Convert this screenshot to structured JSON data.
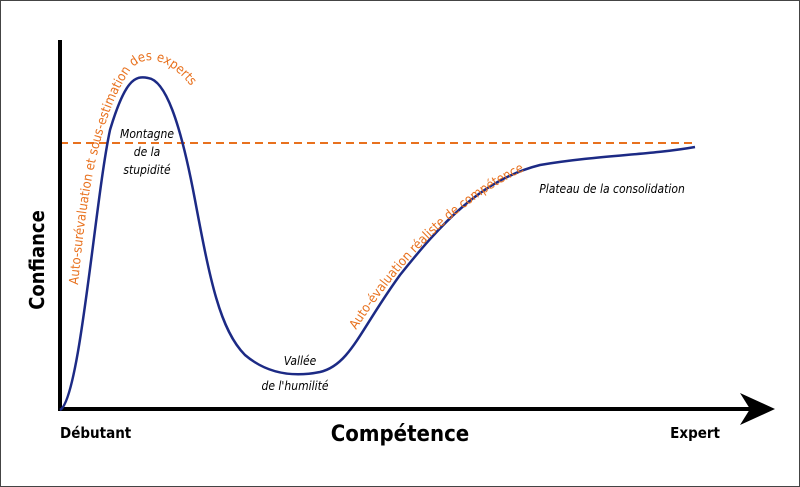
{
  "axes": {
    "y_label": "Confiance",
    "x_label": "Compétence",
    "x_start": "Débutant",
    "x_end": "Expert"
  },
  "regions": {
    "mountain": [
      "Montagne",
      "de la",
      "stupidité"
    ],
    "valley": [
      "Vallée",
      "de l'humilité"
    ],
    "plateau": "Plateau de la consolidation"
  },
  "phases": {
    "overestimation": "Auto-surévaluation et sous-estimation des experts",
    "realistic": "Auto-évaluation réaliste de compétence"
  }
}
